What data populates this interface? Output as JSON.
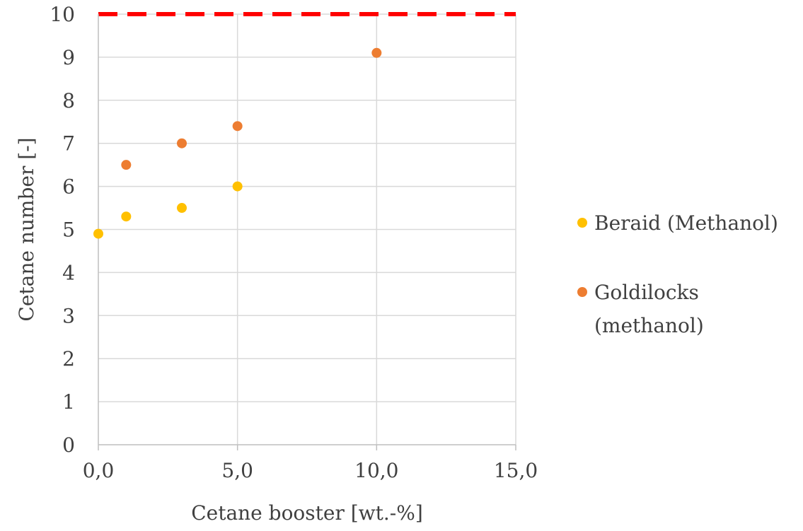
{
  "chart_data": {
    "type": "scatter",
    "title": "",
    "xlabel": "Cetane booster [wt.-%]",
    "ylabel": "Cetane number [-]",
    "xlim": [
      0,
      15
    ],
    "ylim": [
      0,
      10
    ],
    "x_ticks": [
      0,
      5,
      10,
      15
    ],
    "x_tick_labels": [
      "0,0",
      "5,0",
      "10,0",
      "15,0"
    ],
    "y_ticks": [
      0,
      1,
      2,
      3,
      4,
      5,
      6,
      7,
      8,
      9,
      10
    ],
    "y_tick_labels": [
      "0",
      "1",
      "2",
      "3",
      "4",
      "5",
      "6",
      "7",
      "8",
      "9",
      "10"
    ],
    "grid": true,
    "legend_position": "right",
    "series": [
      {
        "name": "Beraid (Methanol)",
        "legend_lines": [
          "Beraid (Methanol)"
        ],
        "color": "#FFC000",
        "points": [
          {
            "x": 0,
            "y": 4.9
          },
          {
            "x": 1,
            "y": 5.3
          },
          {
            "x": 3,
            "y": 5.5
          },
          {
            "x": 5,
            "y": 6.0
          }
        ]
      },
      {
        "name": "Goldilocks (methanol)",
        "legend_lines": [
          "Goldilocks",
          "(methanol)"
        ],
        "color": "#ED7D31",
        "points": [
          {
            "x": 1,
            "y": 6.5
          },
          {
            "x": 3,
            "y": 7.0
          },
          {
            "x": 5,
            "y": 7.4
          },
          {
            "x": 10,
            "y": 9.1
          }
        ]
      }
    ],
    "reference_lines": [
      {
        "y": 10,
        "color": "#FF0000",
        "style": "dashed"
      }
    ]
  }
}
